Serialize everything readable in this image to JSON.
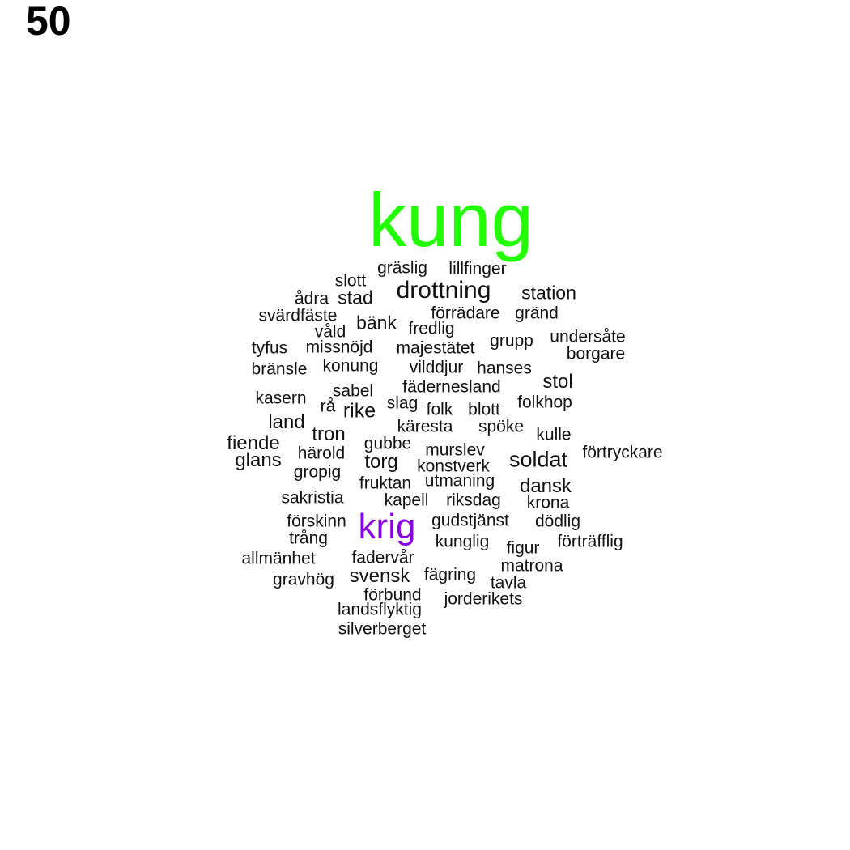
{
  "panel_label": "50",
  "colors": {
    "primary": "#22ff00",
    "secondary": "#8a00e6",
    "default": "#111111"
  },
  "words": [
    {
      "text": "kung",
      "weight": 10,
      "color": "#22ff00"
    },
    {
      "text": "krig",
      "weight": 6,
      "color": "#8a00e6"
    },
    {
      "text": "drottning",
      "weight": 3
    },
    {
      "text": "soldat",
      "weight": 2.5
    },
    {
      "text": "gräslig",
      "weight": 1
    },
    {
      "text": "lillfinger",
      "weight": 1
    },
    {
      "text": "slott",
      "weight": 1
    },
    {
      "text": "station",
      "weight": 1.5
    },
    {
      "text": "ådra",
      "weight": 1
    },
    {
      "text": "stad",
      "weight": 1.5
    },
    {
      "text": "förrädare",
      "weight": 1
    },
    {
      "text": "gränd",
      "weight": 1
    },
    {
      "text": "svärdfäste",
      "weight": 1
    },
    {
      "text": "bänk",
      "weight": 1.5
    },
    {
      "text": "våld",
      "weight": 1
    },
    {
      "text": "fredlig",
      "weight": 1
    },
    {
      "text": "undersåte",
      "weight": 1
    },
    {
      "text": "grupp",
      "weight": 1
    },
    {
      "text": "tyfus",
      "weight": 1
    },
    {
      "text": "missnöjd",
      "weight": 1
    },
    {
      "text": "majestätet",
      "weight": 1
    },
    {
      "text": "borgare",
      "weight": 1
    },
    {
      "text": "bränsle",
      "weight": 1
    },
    {
      "text": "konung",
      "weight": 1
    },
    {
      "text": "vilddjur",
      "weight": 1
    },
    {
      "text": "hanses",
      "weight": 1
    },
    {
      "text": "stol",
      "weight": 1.5
    },
    {
      "text": "fädernesland",
      "weight": 1
    },
    {
      "text": "sabel",
      "weight": 1
    },
    {
      "text": "kasern",
      "weight": 1
    },
    {
      "text": "rå",
      "weight": 1
    },
    {
      "text": "rike",
      "weight": 1.5
    },
    {
      "text": "slag",
      "weight": 1
    },
    {
      "text": "folk",
      "weight": 1
    },
    {
      "text": "blott",
      "weight": 1
    },
    {
      "text": "folkhop",
      "weight": 1
    },
    {
      "text": "land",
      "weight": 1.5
    },
    {
      "text": "käresta",
      "weight": 1
    },
    {
      "text": "spöke",
      "weight": 1
    },
    {
      "text": "tron",
      "weight": 1.5
    },
    {
      "text": "kulle",
      "weight": 1
    },
    {
      "text": "fiende",
      "weight": 1.5
    },
    {
      "text": "gubbe",
      "weight": 1
    },
    {
      "text": "härold",
      "weight": 1
    },
    {
      "text": "murslev",
      "weight": 1
    },
    {
      "text": "förtryckare",
      "weight": 1
    },
    {
      "text": "glans",
      "weight": 1.5
    },
    {
      "text": "torg",
      "weight": 1.5
    },
    {
      "text": "konstverk",
      "weight": 1
    },
    {
      "text": "gropig",
      "weight": 1
    },
    {
      "text": "fruktan",
      "weight": 1
    },
    {
      "text": "utmaning",
      "weight": 1
    },
    {
      "text": "dansk",
      "weight": 1.5
    },
    {
      "text": "sakristia",
      "weight": 1
    },
    {
      "text": "kapell",
      "weight": 1
    },
    {
      "text": "riksdag",
      "weight": 1
    },
    {
      "text": "krona",
      "weight": 1
    },
    {
      "text": "förskinn",
      "weight": 1
    },
    {
      "text": "gudstjänst",
      "weight": 1
    },
    {
      "text": "dödlig",
      "weight": 1
    },
    {
      "text": "trång",
      "weight": 1
    },
    {
      "text": "kunglig",
      "weight": 1
    },
    {
      "text": "figur",
      "weight": 1
    },
    {
      "text": "förträfflig",
      "weight": 1
    },
    {
      "text": "allmänhet",
      "weight": 1
    },
    {
      "text": "fadervår",
      "weight": 1
    },
    {
      "text": "matrona",
      "weight": 1
    },
    {
      "text": "gravhög",
      "weight": 1
    },
    {
      "text": "svensk",
      "weight": 1.5
    },
    {
      "text": "fägring",
      "weight": 1
    },
    {
      "text": "tavla",
      "weight": 1
    },
    {
      "text": "förbund",
      "weight": 1
    },
    {
      "text": "jorderikets",
      "weight": 1
    },
    {
      "text": "landsflyktig",
      "weight": 1
    },
    {
      "text": "silverberget",
      "weight": 1
    }
  ]
}
